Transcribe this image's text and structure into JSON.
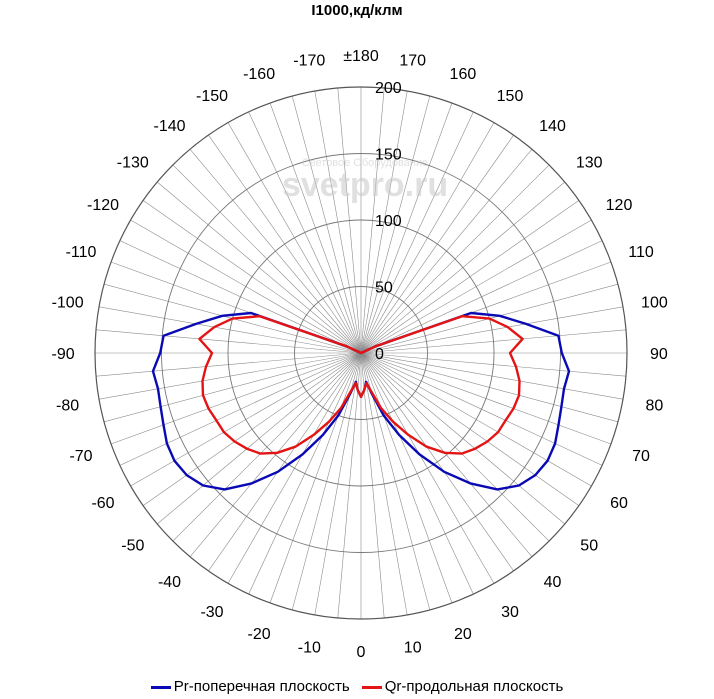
{
  "chart_data": {
    "type": "polar-line",
    "title": "I1000,кд/клм",
    "rlim": [
      0,
      200
    ],
    "radial_ticks": [
      0,
      50,
      100,
      150,
      200
    ],
    "angle_ticks_step": 10,
    "angle_labels": [
      {
        "angle": 0,
        "label": "0"
      },
      {
        "angle": 10,
        "label": "10"
      },
      {
        "angle": 20,
        "label": "20"
      },
      {
        "angle": 30,
        "label": "30"
      },
      {
        "angle": 40,
        "label": "40"
      },
      {
        "angle": 50,
        "label": "50"
      },
      {
        "angle": 60,
        "label": "60"
      },
      {
        "angle": 70,
        "label": "70"
      },
      {
        "angle": 80,
        "label": "80"
      },
      {
        "angle": 90,
        "label": "90"
      },
      {
        "angle": 100,
        "label": "100"
      },
      {
        "angle": 110,
        "label": "110"
      },
      {
        "angle": 120,
        "label": "120"
      },
      {
        "angle": 130,
        "label": "130"
      },
      {
        "angle": 140,
        "label": "140"
      },
      {
        "angle": 150,
        "label": "150"
      },
      {
        "angle": 160,
        "label": "160"
      },
      {
        "angle": 170,
        "label": "170"
      },
      {
        "angle": 180,
        "label": "±180"
      },
      {
        "angle": -170,
        "label": "-170"
      },
      {
        "angle": -160,
        "label": "-160"
      },
      {
        "angle": -150,
        "label": "-150"
      },
      {
        "angle": -140,
        "label": "-140"
      },
      {
        "angle": -130,
        "label": "-130"
      },
      {
        "angle": -120,
        "label": "-120"
      },
      {
        "angle": -110,
        "label": "-110"
      },
      {
        "angle": -100,
        "label": "-100"
      },
      {
        "angle": -90,
        "label": "-90"
      },
      {
        "angle": -80,
        "label": "-80"
      },
      {
        "angle": -70,
        "label": "-70"
      },
      {
        "angle": -60,
        "label": "-60"
      },
      {
        "angle": -50,
        "label": "-50"
      },
      {
        "angle": -40,
        "label": "-40"
      },
      {
        "angle": -30,
        "label": "-30"
      },
      {
        "angle": -20,
        "label": "-20"
      },
      {
        "angle": -10,
        "label": "-10"
      }
    ],
    "series": [
      {
        "name": "Pr-поперечная плоскость",
        "color": "#0a0ab4",
        "angles": [
          0,
          5,
          10,
          15,
          20,
          25,
          30,
          35,
          40,
          45,
          50,
          55,
          60,
          65,
          70,
          75,
          80,
          85,
          90,
          95,
          100,
          105,
          110,
          115,
          120
        ],
        "values": [
          33,
          28,
          22,
          32,
          50,
          68,
          88,
          109,
          128,
          145,
          155,
          160,
          162,
          161,
          158,
          156,
          155,
          157,
          151,
          149,
          126,
          108,
          88,
          12,
          0
        ]
      },
      {
        "name": "Qr-продольная плоскость",
        "color": "#e41414",
        "angles": [
          0,
          5,
          10,
          15,
          20,
          25,
          30,
          35,
          40,
          45,
          50,
          55,
          60,
          65,
          70,
          75,
          80,
          85,
          90,
          95,
          100,
          105,
          110,
          115,
          120
        ],
        "values": [
          33,
          28,
          23,
          30,
          44,
          57,
          71,
          86,
          98,
          107,
          112,
          116,
          119,
          120,
          122,
          123,
          121,
          117,
          112,
          122,
          112,
          100,
          81,
          12,
          0
        ]
      }
    ],
    "legend_position": "bottom",
    "watermark": [
      "Световое Оборудование",
      "svetpro.ru"
    ]
  }
}
